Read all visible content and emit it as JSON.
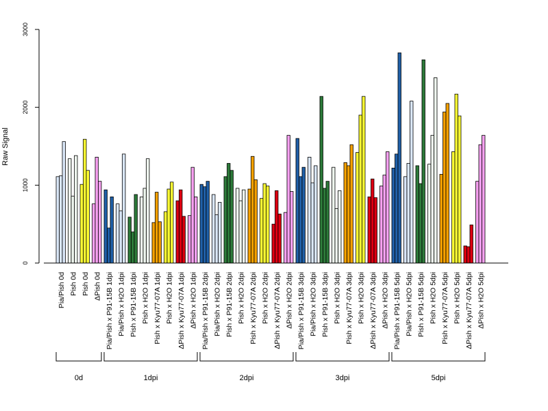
{
  "chart_data": {
    "type": "bar",
    "title": "",
    "xlabel": "",
    "ylabel": "Raw Signal",
    "ylim": [
      0,
      3000
    ],
    "y_ticks": [
      0,
      1000,
      2000,
      3000
    ],
    "grid": false,
    "legend": "none",
    "group_colors": [
      "#d9e6f7",
      "#2060a8",
      "#eef6ee",
      "#2d7a3a",
      "#f5a000",
      "#ffff33",
      "#dd0011",
      "#f6a0f0"
    ],
    "categories": [
      "Pia/Pish 0d",
      "Pish 0d",
      "Pish 0d",
      "ΔPish 0d",
      "Pia/Pish x P91-15B 1dpi",
      "Pia/Pish x H2O 1dpi",
      "Pish x P91-15B 1dpi",
      "Pish x H2O 1dpi",
      "Pish x Kyu77-07A 1dpi",
      "Pish x H2O 1dpi",
      "ΔPish x Kyu77-07A 1dpi",
      "ΔPish x H2O 1dpi",
      "Pia/Pish x P91-15B 2dpi",
      "Pia/Pish x H2O 2dpi",
      "Pish x P91-15B 2dpi",
      "Pish x H2O 2dpi",
      "Pish x Kyu77-07A 2dpi",
      "Pish x H2O 2dpi",
      "ΔPish x Kyu77-07A 2dpi",
      "ΔPish x H2O 2dpi",
      "Pia/Pish x P91-15B 3dpi",
      "Pia/Pish x H2O 3dpi",
      "Pish x P91-15B 3dpi",
      "Pish x H2O 3dpi",
      "Pish x Kyu77-07A 3dpi",
      "Pish x H2O 3dpi",
      "ΔPish x Kyu77-07A 3dpi",
      "ΔPish x H2O 3dpi",
      "Pia/Pish x P91-15B 5dpi",
      "Pia/Pish x H2O 5dpi",
      "Pish x P91-15B 5dpi",
      "Pish x H2O 5dpi",
      "Pish x Kyu77-07A 5dpi",
      "Pish x H2O 5dpi",
      "ΔPish x Kyu77-07A 5dpi",
      "ΔPish x H2O 5dpi"
    ],
    "category_color_index": [
      0,
      2,
      5,
      7,
      1,
      0,
      3,
      2,
      4,
      5,
      6,
      7,
      1,
      0,
      3,
      2,
      4,
      5,
      6,
      7,
      1,
      0,
      3,
      2,
      4,
      5,
      6,
      7,
      1,
      0,
      3,
      2,
      4,
      5,
      6,
      7
    ],
    "values": [
      [
        1110,
        1120,
        1560
      ],
      [
        1340,
        860,
        1380
      ],
      [
        1010,
        1590,
        1190
      ],
      [
        760,
        1360,
        1050
      ],
      [
        940,
        450,
        850
      ],
      [
        760,
        670,
        1400
      ],
      [
        590,
        400,
        880
      ],
      [
        850,
        960,
        1340
      ],
      [
        520,
        910,
        530
      ],
      [
        660,
        950,
        1040
      ],
      [
        800,
        940,
        600
      ],
      [
        610,
        1230,
        850
      ],
      [
        1010,
        980,
        1050
      ],
      [
        880,
        620,
        780
      ],
      [
        1110,
        1280,
        1190
      ],
      [
        960,
        800,
        940
      ],
      [
        950,
        1370,
        1070
      ],
      [
        830,
        1020,
        990
      ],
      [
        500,
        930,
        630
      ],
      [
        650,
        1640,
        920
      ],
      [
        1600,
        1110,
        1230
      ],
      [
        1360,
        1030,
        1250
      ],
      [
        2140,
        960,
        1050
      ],
      [
        1230,
        700,
        930
      ],
      [
        1290,
        1250,
        1520
      ],
      [
        1420,
        1900,
        2140
      ],
      [
        850,
        1080,
        840
      ],
      [
        990,
        1130,
        1430
      ],
      [
        1220,
        1400,
        2700
      ],
      [
        1110,
        1280,
        2080
      ],
      [
        1250,
        1020,
        2610
      ],
      [
        1270,
        1640,
        2380
      ],
      [
        1140,
        1940,
        2050
      ],
      [
        1430,
        2170,
        1890
      ],
      [
        220,
        210,
        490
      ],
      [
        1050,
        1520,
        1640
      ]
    ],
    "groups": [
      {
        "label": "0d",
        "start": 0,
        "end": 3
      },
      {
        "label": "1dpi",
        "start": 4,
        "end": 11
      },
      {
        "label": "2dpi",
        "start": 12,
        "end": 19
      },
      {
        "label": "3dpi",
        "start": 20,
        "end": 27
      },
      {
        "label": "5dpi",
        "start": 28,
        "end": 35
      }
    ]
  }
}
